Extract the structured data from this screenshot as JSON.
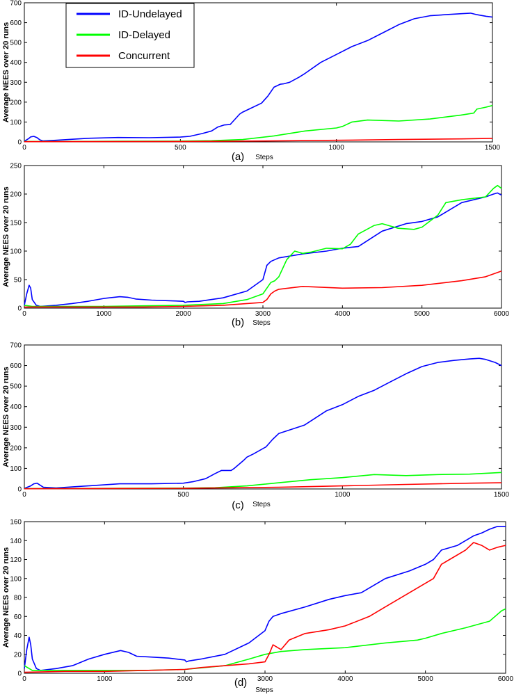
{
  "legend": {
    "items": [
      {
        "label": "ID-Undelayed",
        "color": "#0000ff"
      },
      {
        "label": "ID-Delayed",
        "color": "#00ff00"
      },
      {
        "label": "Concurrent",
        "color": "#ff0000"
      }
    ]
  },
  "chart_data": [
    {
      "type": "line",
      "panel_label": "(a)",
      "xlabel": "Steps",
      "ylabel": "Average NEES over 20 runs",
      "xlim": [
        0,
        1500
      ],
      "ylim": [
        0,
        700
      ],
      "xticks": [
        0,
        500,
        1000,
        1500
      ],
      "yticks": [
        0,
        100,
        200,
        300,
        400,
        500,
        600,
        700
      ],
      "series": [
        {
          "name": "ID-Undelayed",
          "x": [
            0,
            15,
            20,
            30,
            40,
            50,
            60,
            100,
            200,
            300,
            400,
            500,
            530,
            570,
            600,
            620,
            640,
            660,
            690,
            700,
            720,
            760,
            780,
            800,
            820,
            830,
            850,
            880,
            900,
            950,
            1000,
            1050,
            1100,
            1150,
            1200,
            1250,
            1300,
            1350,
            1400,
            1430,
            1450,
            1480,
            1500
          ],
          "y": [
            3,
            18,
            25,
            28,
            22,
            10,
            5,
            8,
            18,
            22,
            21,
            24,
            28,
            42,
            55,
            75,
            85,
            88,
            140,
            150,
            165,
            195,
            230,
            275,
            290,
            292,
            300,
            325,
            345,
            400,
            440,
            480,
            510,
            550,
            590,
            620,
            635,
            640,
            645,
            648,
            640,
            632,
            628
          ]
        },
        {
          "name": "ID-Delayed",
          "x": [
            0,
            100,
            300,
            500,
            600,
            700,
            800,
            900,
            1000,
            1020,
            1050,
            1100,
            1200,
            1300,
            1400,
            1440,
            1450,
            1480,
            1500
          ],
          "y": [
            2,
            2,
            3,
            4,
            6,
            12,
            30,
            55,
            70,
            78,
            100,
            110,
            105,
            115,
            135,
            145,
            165,
            175,
            183
          ]
        },
        {
          "name": "Concurrent",
          "x": [
            0,
            500,
            800,
            1000,
            1200,
            1400,
            1500
          ],
          "y": [
            1,
            2,
            5,
            8,
            12,
            15,
            18
          ]
        }
      ]
    },
    {
      "type": "line",
      "panel_label": "(b)",
      "xlabel": "Steps",
      "ylabel": "Average NEES over 20 runs",
      "xlim": [
        0,
        6000
      ],
      "ylim": [
        0,
        250
      ],
      "xticks": [
        0,
        1000,
        2000,
        3000,
        4000,
        5000,
        6000
      ],
      "yticks": [
        0,
        50,
        100,
        150,
        200,
        250
      ],
      "series": [
        {
          "name": "ID-Undelayed",
          "x": [
            0,
            30,
            60,
            80,
            100,
            150,
            200,
            400,
            600,
            800,
            1000,
            1200,
            1300,
            1400,
            1600,
            1800,
            2000,
            2020,
            2050,
            2200,
            2500,
            2800,
            3000,
            3050,
            3100,
            3200,
            3500,
            3800,
            4000,
            4200,
            4500,
            4800,
            5000,
            5200,
            5500,
            5800,
            5900,
            5950,
            6000
          ],
          "y": [
            5,
            25,
            40,
            35,
            15,
            5,
            3,
            5,
            8,
            12,
            17,
            20,
            19,
            16,
            14,
            13,
            12,
            10,
            11,
            12,
            18,
            30,
            50,
            75,
            82,
            88,
            95,
            100,
            105,
            108,
            135,
            148,
            152,
            160,
            185,
            195,
            200,
            202,
            198
          ]
        },
        {
          "name": "ID-Delayed",
          "x": [
            0,
            100,
            500,
            1000,
            1500,
            2000,
            2500,
            2800,
            3000,
            3050,
            3100,
            3150,
            3200,
            3300,
            3400,
            3500,
            3600,
            3800,
            4000,
            4100,
            4200,
            4400,
            4500,
            4700,
            4900,
            5000,
            5200,
            5300,
            5500,
            5800,
            5900,
            5950,
            6000
          ],
          "y": [
            5,
            3,
            3,
            3,
            4,
            5,
            8,
            15,
            25,
            35,
            45,
            48,
            55,
            85,
            100,
            96,
            98,
            105,
            104,
            112,
            130,
            145,
            148,
            140,
            138,
            142,
            163,
            185,
            190,
            195,
            210,
            215,
            210
          ]
        },
        {
          "name": "Concurrent",
          "x": [
            0,
            500,
            1000,
            1500,
            2000,
            2500,
            2800,
            3000,
            3050,
            3100,
            3150,
            3200,
            3500,
            4000,
            4500,
            5000,
            5500,
            5800,
            6000
          ],
          "y": [
            2,
            2,
            2,
            2,
            3,
            5,
            8,
            10,
            15,
            25,
            30,
            33,
            38,
            35,
            36,
            40,
            48,
            55,
            65
          ]
        }
      ]
    },
    {
      "type": "line",
      "panel_label": "(c)",
      "xlabel": "Steps",
      "ylabel": "Average NEES over 20 runs",
      "xlim": [
        0,
        1500
      ],
      "ylim": [
        0,
        700
      ],
      "xticks": [
        0,
        500,
        1000,
        1500
      ],
      "yticks": [
        0,
        100,
        200,
        300,
        400,
        500,
        600,
        700
      ],
      "series": [
        {
          "name": "ID-Undelayed",
          "x": [
            0,
            20,
            30,
            40,
            50,
            60,
            100,
            200,
            300,
            400,
            500,
            530,
            570,
            600,
            620,
            650,
            660,
            690,
            700,
            720,
            760,
            780,
            800,
            820,
            840,
            880,
            900,
            950,
            1000,
            1050,
            1100,
            1150,
            1200,
            1250,
            1300,
            1350,
            1400,
            1430,
            1450,
            1480,
            1500
          ],
          "y": [
            3,
            15,
            25,
            28,
            18,
            8,
            5,
            15,
            25,
            25,
            28,
            35,
            50,
            75,
            90,
            90,
            100,
            140,
            155,
            170,
            205,
            240,
            270,
            280,
            290,
            310,
            330,
            380,
            410,
            450,
            480,
            520,
            560,
            595,
            615,
            625,
            632,
            635,
            630,
            615,
            600
          ]
        },
        {
          "name": "ID-Delayed",
          "x": [
            0,
            100,
            300,
            500,
            600,
            700,
            800,
            900,
            1000,
            1100,
            1200,
            1300,
            1400,
            1500
          ],
          "y": [
            2,
            2,
            3,
            4,
            6,
            15,
            30,
            45,
            55,
            70,
            65,
            70,
            72,
            80
          ]
        },
        {
          "name": "Concurrent",
          "x": [
            0,
            500,
            800,
            1000,
            1200,
            1400,
            1500
          ],
          "y": [
            1,
            3,
            8,
            15,
            22,
            28,
            30
          ]
        }
      ]
    },
    {
      "type": "line",
      "panel_label": "(d)",
      "xlabel": "Steps",
      "ylabel": "Average NEES over 20 runs",
      "xlim": [
        0,
        6000
      ],
      "ylim": [
        0,
        160
      ],
      "xticks": [
        0,
        1000,
        2000,
        3000,
        4000,
        5000,
        6000
      ],
      "yticks": [
        0,
        20,
        40,
        60,
        80,
        100,
        120,
        140,
        160
      ],
      "series": [
        {
          "name": "ID-Undelayed",
          "x": [
            0,
            30,
            60,
            80,
            100,
            150,
            200,
            400,
            600,
            800,
            1000,
            1200,
            1300,
            1400,
            1600,
            1800,
            2000,
            2020,
            2050,
            2200,
            2500,
            2800,
            3000,
            3050,
            3100,
            3200,
            3500,
            3800,
            4000,
            4200,
            4500,
            4800,
            5000,
            5100,
            5200,
            5400,
            5500,
            5600,
            5700,
            5800,
            5900,
            6000
          ],
          "y": [
            5,
            25,
            38,
            30,
            15,
            5,
            3,
            5,
            8,
            15,
            20,
            24,
            22,
            18,
            17,
            16,
            14,
            12,
            13,
            15,
            20,
            32,
            45,
            55,
            60,
            63,
            70,
            78,
            82,
            85,
            100,
            108,
            115,
            120,
            130,
            135,
            140,
            145,
            148,
            152,
            155,
            155
          ]
        },
        {
          "name": "ID-Delayed",
          "x": [
            0,
            100,
            500,
            1000,
            1500,
            2000,
            2500,
            2800,
            3000,
            3200,
            3500,
            4000,
            4500,
            4900,
            5000,
            5200,
            5500,
            5800,
            5950,
            6000
          ],
          "y": [
            8,
            3,
            3,
            3,
            3,
            4,
            8,
            15,
            20,
            23,
            25,
            27,
            32,
            35,
            37,
            42,
            48,
            55,
            66,
            68
          ]
        },
        {
          "name": "Concurrent",
          "x": [
            0,
            500,
            1000,
            1500,
            2000,
            2200,
            2500,
            2800,
            3000,
            3050,
            3100,
            3200,
            3300,
            3500,
            3800,
            4000,
            4300,
            4500,
            4800,
            5000,
            5100,
            5200,
            5300,
            5500,
            5600,
            5700,
            5800,
            5900,
            6000
          ],
          "y": [
            1,
            2,
            2,
            3,
            4,
            6,
            8,
            10,
            12,
            20,
            30,
            25,
            35,
            42,
            46,
            50,
            60,
            70,
            85,
            95,
            100,
            115,
            120,
            130,
            138,
            135,
            130,
            133,
            135
          ]
        }
      ]
    }
  ]
}
